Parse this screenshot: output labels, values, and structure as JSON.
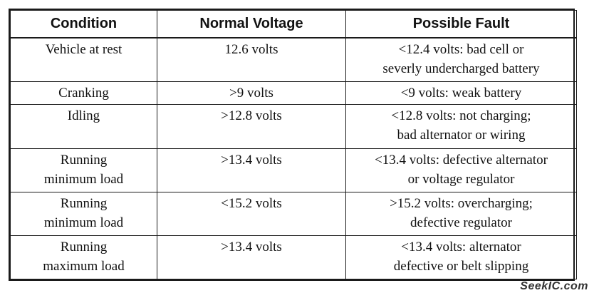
{
  "table": {
    "headers": [
      "Condition",
      "Normal Voltage",
      "Possible Fault"
    ],
    "rows": [
      {
        "condition": [
          "Vehicle at rest"
        ],
        "voltage": "12.6 volts",
        "fault": [
          "<12.4 volts: bad cell or",
          "severly undercharged battery"
        ]
      },
      {
        "condition": [
          "Cranking"
        ],
        "voltage": ">9 volts",
        "fault": [
          "<9 volts: weak battery"
        ]
      },
      {
        "condition": [
          "Idling"
        ],
        "voltage": ">12.8 volts",
        "fault": [
          "<12.8 volts: not charging;",
          "bad alternator or wiring"
        ]
      },
      {
        "condition": [
          "Running",
          "minimum load"
        ],
        "voltage": ">13.4 volts",
        "fault": [
          "<13.4 volts: defective alternator",
          "or voltage regulator"
        ]
      },
      {
        "condition": [
          "Running",
          "minimum load"
        ],
        "voltage": "<15.2 volts",
        "fault": [
          ">15.2 volts: overcharging;",
          "defective regulator"
        ]
      },
      {
        "condition": [
          "Running",
          "maximum load"
        ],
        "voltage": ">13.4 volts",
        "fault": [
          "<13.4 volts: alternator",
          "defective or belt slipping"
        ]
      }
    ]
  },
  "watermark": "SeekIC.com"
}
